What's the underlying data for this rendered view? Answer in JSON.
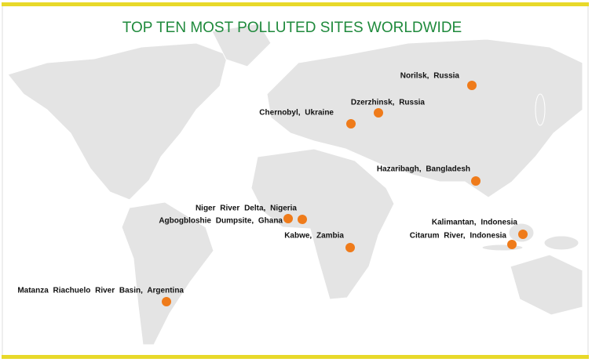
{
  "title": "TOP TEN MOST POLLUTED SITES WORLDWIDE",
  "sites": [
    {
      "label": "Norilsk, Russia"
    },
    {
      "label": "Dzerzhinsk, Russia"
    },
    {
      "label": "Chernobyl, Ukraine"
    },
    {
      "label": "Hazaribagh, Bangladesh"
    },
    {
      "label": "Niger River Delta, Nigeria"
    },
    {
      "label": "Agbogbloshie Dumpsite, Ghana"
    },
    {
      "label": "Kabwe, Zambia"
    },
    {
      "label": "Kalimantan, Indonesia"
    },
    {
      "label": "Citarum River, Indonesia"
    },
    {
      "label": "Matanza Riachuelo River Basin, Argentina"
    }
  ]
}
